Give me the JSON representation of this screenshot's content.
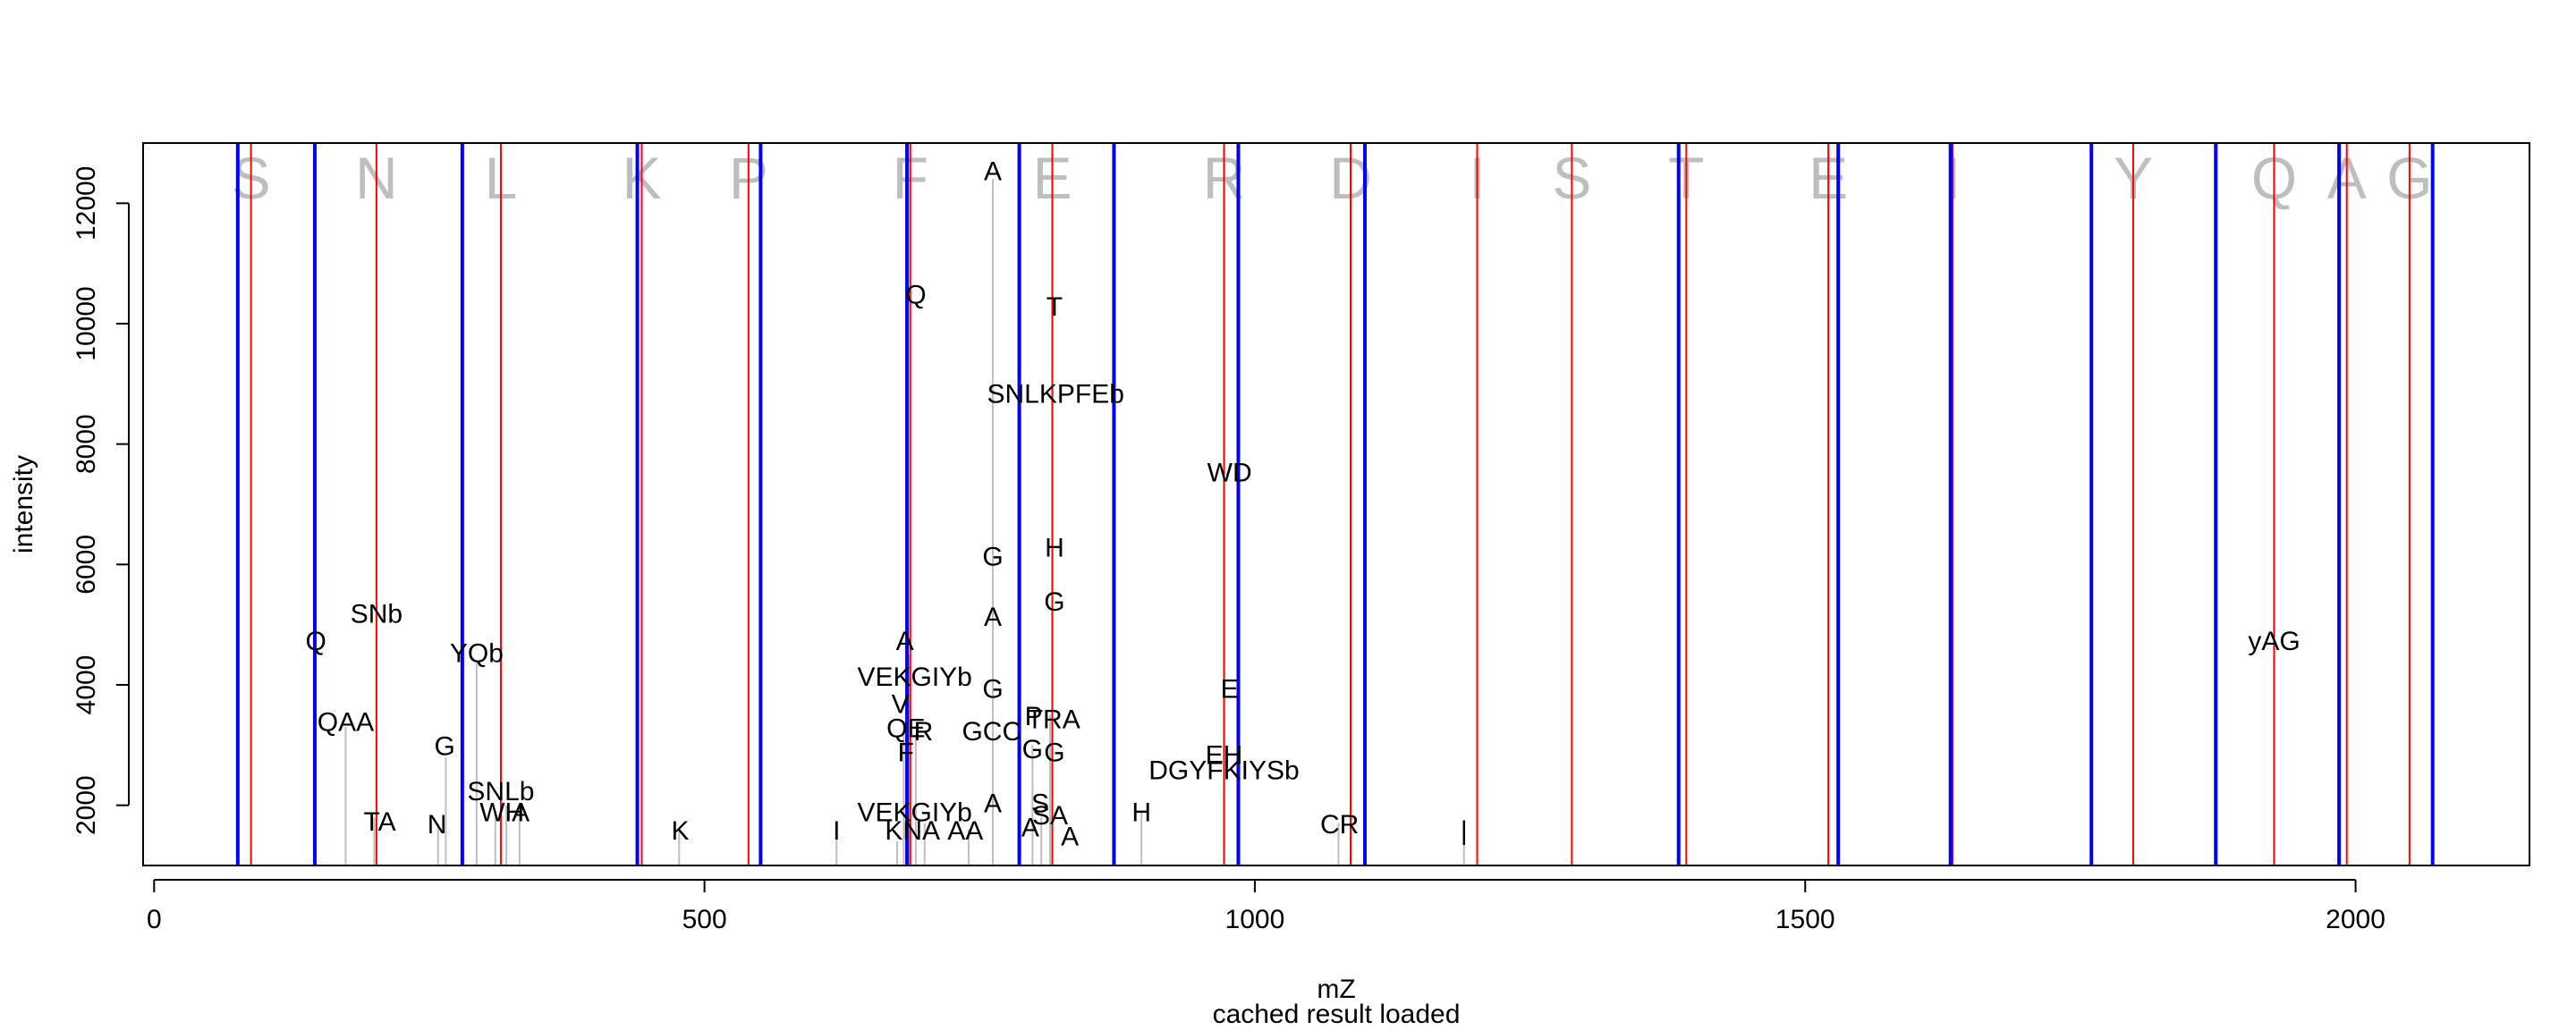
{
  "chart_data": {
    "type": "spectrum",
    "xlabel": "mZ",
    "ylabel": "intensity",
    "subtitle": "cached result loaded",
    "xlim": [
      -10,
      2158
    ],
    "ylim": [
      1000,
      13000
    ],
    "x_ticks": [
      0,
      500,
      1000,
      1500,
      2000
    ],
    "y_ticks": [
      2000,
      4000,
      6000,
      8000,
      10000,
      12000
    ],
    "peptide_letters": [
      {
        "letter": "S",
        "x": 88
      },
      {
        "letter": "N",
        "x": 202
      },
      {
        "letter": "L",
        "x": 315
      },
      {
        "letter": "K",
        "x": 443
      },
      {
        "letter": "P",
        "x": 540
      },
      {
        "letter": "F",
        "x": 687
      },
      {
        "letter": "E",
        "x": 816
      },
      {
        "letter": "R",
        "x": 972
      },
      {
        "letter": "D",
        "x": 1087
      },
      {
        "letter": "I",
        "x": 1202
      },
      {
        "letter": "S",
        "x": 1288
      },
      {
        "letter": "T",
        "x": 1392
      },
      {
        "letter": "E",
        "x": 1521
      },
      {
        "letter": "I",
        "x": 1634
      },
      {
        "letter": "Y",
        "x": 1798
      },
      {
        "letter": "Q",
        "x": 1926
      },
      {
        "letter": "A",
        "x": 1992
      },
      {
        "letter": "G",
        "x": 2049
      }
    ],
    "b_ion_lines": {
      "color": "#0000ff",
      "x": [
        76,
        146,
        280,
        439,
        551,
        684,
        786,
        872,
        985,
        1100,
        1385,
        1530,
        1632,
        1760,
        1873,
        1985,
        2070
      ]
    },
    "y_ion_lines": {
      "color": "#ff0000",
      "x": [
        88,
        202,
        315,
        443,
        540,
        687,
        816,
        972,
        1087,
        1202,
        1288,
        1392,
        1521,
        1634,
        1798,
        1926,
        1992,
        2049
      ]
    },
    "peaks": {
      "color": "#bebebe",
      "points": [
        {
          "x": 174,
          "y": 3300
        },
        {
          "x": 200,
          "y": 1800
        },
        {
          "x": 258,
          "y": 1700
        },
        {
          "x": 265,
          "y": 2800
        },
        {
          "x": 293,
          "y": 4400
        },
        {
          "x": 310,
          "y": 1900
        },
        {
          "x": 320,
          "y": 2000
        },
        {
          "x": 332,
          "y": 1900
        },
        {
          "x": 477,
          "y": 1600
        },
        {
          "x": 620,
          "y": 1600
        },
        {
          "x": 675,
          "y": 1400
        },
        {
          "x": 681,
          "y": 3400
        },
        {
          "x": 686,
          "y": 4500
        },
        {
          "x": 692,
          "y": 3200
        },
        {
          "x": 700,
          "y": 1700
        },
        {
          "x": 740,
          "y": 1600
        },
        {
          "x": 762,
          "y": 12400
        },
        {
          "x": 798,
          "y": 3000
        },
        {
          "x": 806,
          "y": 1800
        },
        {
          "x": 814,
          "y": 3500
        },
        {
          "x": 897,
          "y": 1900
        },
        {
          "x": 1076,
          "y": 1700
        },
        {
          "x": 1190,
          "y": 1600
        }
      ]
    },
    "labels": [
      {
        "text": "Q",
        "x": 147,
        "y": 4700
      },
      {
        "text": "SNb",
        "x": 202,
        "y": 5150
      },
      {
        "text": "QAA",
        "x": 174,
        "y": 3350
      },
      {
        "text": "TA",
        "x": 205,
        "y": 1700
      },
      {
        "text": "N",
        "x": 257,
        "y": 1650
      },
      {
        "text": "G",
        "x": 264,
        "y": 2950
      },
      {
        "text": "YQb",
        "x": 293,
        "y": 4500
      },
      {
        "text": "SNLb",
        "x": 315,
        "y": 2200
      },
      {
        "text": "WH",
        "x": 316,
        "y": 1850
      },
      {
        "text": "A",
        "x": 333,
        "y": 1850
      },
      {
        "text": "K",
        "x": 478,
        "y": 1550
      },
      {
        "text": "I",
        "x": 620,
        "y": 1550
      },
      {
        "text": "A",
        "x": 682,
        "y": 4700
      },
      {
        "text": "VEKGIYb",
        "x": 691,
        "y": 4100
      },
      {
        "text": "V",
        "x": 678,
        "y": 3650
      },
      {
        "text": "QE",
        "x": 683,
        "y": 3250
      },
      {
        "text": "R",
        "x": 699,
        "y": 3200
      },
      {
        "text": "F",
        "x": 683,
        "y": 2850
      },
      {
        "text": "VEKGIYb",
        "x": 691,
        "y": 1850
      },
      {
        "text": "KNA",
        "x": 689,
        "y": 1550
      },
      {
        "text": "AA",
        "x": 737,
        "y": 1550
      },
      {
        "text": "Q",
        "x": 692,
        "y": 10450
      },
      {
        "text": "A",
        "x": 762,
        "y": 12500
      },
      {
        "text": "SNLKPFEb",
        "x": 819,
        "y": 8800
      },
      {
        "text": "G",
        "x": 762,
        "y": 6100
      },
      {
        "text": "A",
        "x": 762,
        "y": 5100
      },
      {
        "text": "G",
        "x": 762,
        "y": 3900
      },
      {
        "text": "GCC",
        "x": 761,
        "y": 3200
      },
      {
        "text": "A",
        "x": 762,
        "y": 2000
      },
      {
        "text": "T",
        "x": 818,
        "y": 10250
      },
      {
        "text": "H",
        "x": 818,
        "y": 6250
      },
      {
        "text": "G",
        "x": 818,
        "y": 5350
      },
      {
        "text": "P",
        "x": 799,
        "y": 3450
      },
      {
        "text": "TRA",
        "x": 817,
        "y": 3400
      },
      {
        "text": "G",
        "x": 798,
        "y": 2900
      },
      {
        "text": "G",
        "x": 818,
        "y": 2850
      },
      {
        "text": "S",
        "x": 805,
        "y": 2000
      },
      {
        "text": "SA",
        "x": 814,
        "y": 1800
      },
      {
        "text": "A",
        "x": 796,
        "y": 1600
      },
      {
        "text": "A",
        "x": 832,
        "y": 1450
      },
      {
        "text": "H",
        "x": 897,
        "y": 1850
      },
      {
        "text": "WD",
        "x": 977,
        "y": 7500
      },
      {
        "text": "E",
        "x": 977,
        "y": 3900
      },
      {
        "text": "EH",
        "x": 972,
        "y": 2800
      },
      {
        "text": "DGYFKIYSb",
        "x": 972,
        "y": 2550
      },
      {
        "text": "CR",
        "x": 1077,
        "y": 1650
      },
      {
        "text": "|",
        "x": 1190,
        "y": 1550
      },
      {
        "text": "yAG",
        "x": 1926,
        "y": 4700
      }
    ]
  }
}
